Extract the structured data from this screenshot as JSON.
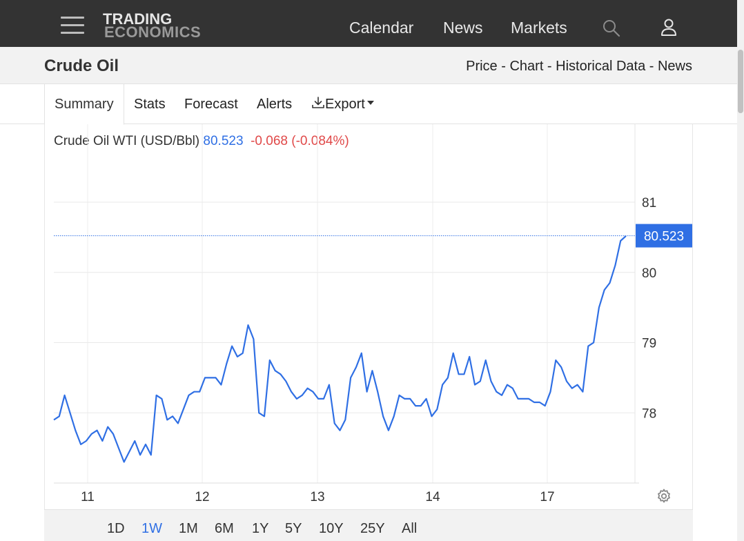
{
  "header": {
    "logo_line1": "TRADING",
    "logo_line2": "ECONOMICS",
    "nav": [
      "Calendar",
      "News",
      "Markets"
    ],
    "icons": [
      "menu-icon",
      "search-icon",
      "user-icon"
    ]
  },
  "title_bar": {
    "title": "Crude Oil",
    "links": [
      "Price",
      "Chart",
      "Historical Data",
      "News"
    ],
    "separator": " - "
  },
  "tabs": {
    "items": [
      "Summary",
      "Stats",
      "Forecast",
      "Alerts",
      "Export"
    ],
    "active": "Summary",
    "export_icon": "download-icon"
  },
  "quote": {
    "name": "Crude Oil WTI (USD/Bbl)",
    "price": "80.523",
    "change": "-0.068",
    "change_pct": "(-0.084%)"
  },
  "colors": {
    "line": "#2f6fe4",
    "up_price": "#2f6fe4",
    "negative": "#e04848",
    "topbar": "#333333"
  },
  "chart_data": {
    "type": "line",
    "series": [
      {
        "values": [
          77.9,
          77.95,
          78.25,
          78.0,
          77.75,
          77.55,
          77.6,
          77.7,
          77.75,
          77.6,
          77.8,
          77.7,
          77.5,
          77.3,
          77.45,
          77.6,
          77.4,
          77.55,
          77.4,
          78.25,
          78.2,
          77.9,
          77.95,
          77.85,
          78.05,
          78.25,
          78.3,
          78.3,
          78.5,
          78.5,
          78.5,
          78.4,
          78.7,
          78.95,
          78.8,
          78.85,
          79.25,
          79.05,
          78.0,
          77.95,
          78.75,
          78.6,
          78.55,
          78.45,
          78.3,
          78.2,
          78.25,
          78.35,
          78.3,
          78.2,
          78.2,
          78.4,
          77.85,
          77.75,
          77.9,
          78.5,
          78.65,
          78.85,
          78.3,
          78.6,
          78.3,
          77.95,
          77.75,
          77.95,
          78.25,
          78.2,
          78.2,
          78.1,
          78.1,
          78.2,
          77.95,
          78.05,
          78.4,
          78.5,
          78.85,
          78.55,
          78.55,
          78.8,
          78.4,
          78.45,
          78.75,
          78.45,
          78.3,
          78.25,
          78.4,
          78.35,
          78.2,
          78.2,
          78.2,
          78.15,
          78.15,
          78.1,
          78.3,
          78.75,
          78.65,
          78.45,
          78.35,
          78.4,
          78.3,
          78.95,
          79.0,
          79.5,
          79.75,
          79.85,
          80.1,
          80.45,
          80.52
        ]
      }
    ],
    "x_ticks": [
      "11",
      "12",
      "13",
      "14",
      "17"
    ],
    "y_ticks": [
      "78",
      "79",
      "80",
      "81"
    ],
    "ylim": [
      77.0,
      81.6
    ],
    "last_value_label": "80.523",
    "grid": true
  },
  "ranges": {
    "items": [
      "1D",
      "1W",
      "1M",
      "6M",
      "1Y",
      "5Y",
      "10Y",
      "25Y",
      "All"
    ],
    "active": "1W"
  },
  "settings_icon": "gear-icon"
}
